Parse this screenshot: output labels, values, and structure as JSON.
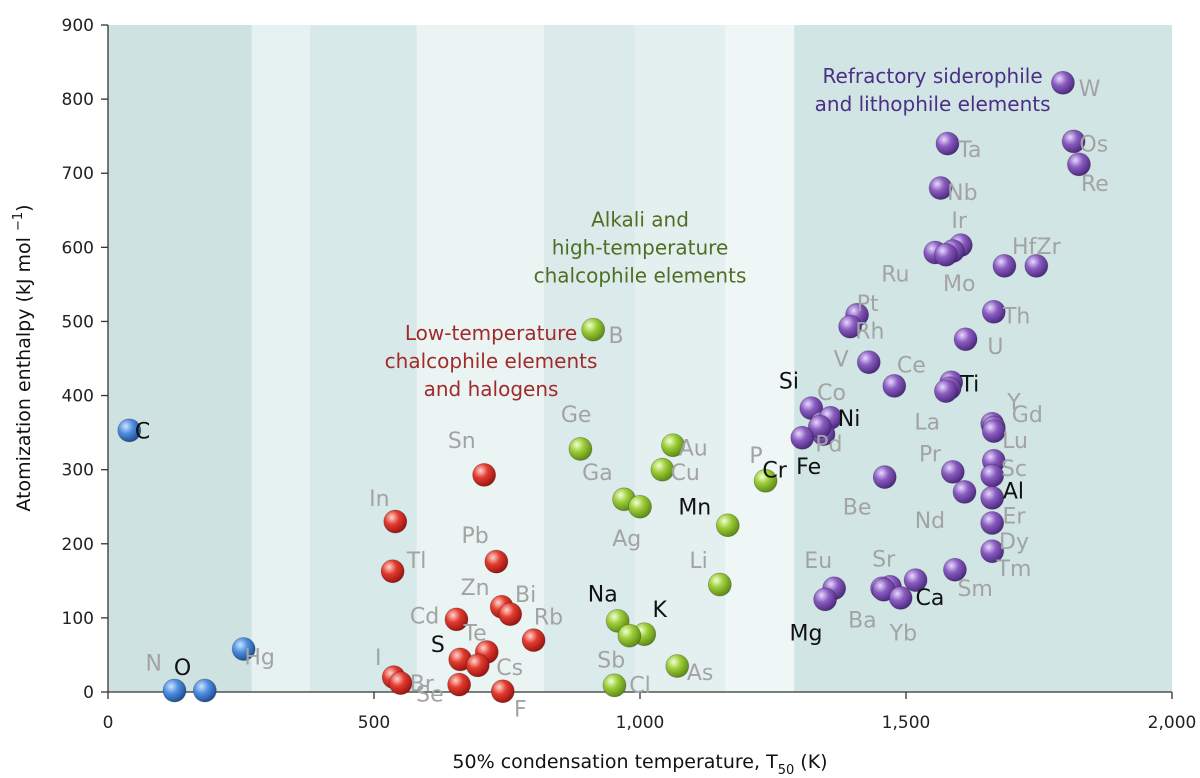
{
  "chart_data": {
    "type": "scatter",
    "xlabel": "50% condensation temperature,",
    "xlabel_symbol": "T",
    "xlabel_sub": "50",
    "xlabel_unit": "(K)",
    "ylabel": "Atomization enthalpy (kJ mol",
    "ylabel_sup": "−1",
    "ylabel_close": ")",
    "xlim": [
      0,
      2000
    ],
    "ylim": [
      0,
      900
    ],
    "x_ticks": [
      0,
      500,
      1000,
      1500,
      2000
    ],
    "x_tick_labels": [
      "0",
      "500",
      "1,000",
      "1,500",
      "2,000"
    ],
    "y_ticks": [
      0,
      100,
      200,
      300,
      400,
      500,
      600,
      700,
      800,
      900
    ],
    "y_tick_labels": [
      "0",
      "100",
      "200",
      "300",
      "400",
      "500",
      "600",
      "700",
      "800",
      "900"
    ],
    "colors": {
      "volatile": "#2f6fc2",
      "low_temp": "#d3231f",
      "alkali": "#8cbe2a",
      "refractory": "#7a4bab",
      "label_gray": "#a3a3a3",
      "label_black": "#111111",
      "ann_low_temp": "#a32a2a",
      "ann_alkali": "#4f6e23",
      "ann_refractory": "#4b2f86"
    },
    "annotations": [
      {
        "group": "low_temp",
        "lines": [
          "Low-temperature",
          "chalcophile elements",
          "and halogens"
        ],
        "x": 720,
        "y": 475
      },
      {
        "group": "alkali",
        "lines": [
          "Alkali and",
          "high-temperature",
          "chalcophile elements"
        ],
        "x": 1000,
        "y": 628
      },
      {
        "group": "refractory",
        "lines": [
          "Refractory siderophile",
          "and lithophile elements"
        ],
        "x": 1550,
        "y": 822
      }
    ],
    "series": [
      {
        "group": "volatile",
        "points": [
          {
            "el": "C",
            "x": 40,
            "y": 353,
            "lx": 65,
            "ly": 353,
            "dark": true
          },
          {
            "el": "N",
            "x": 125,
            "y": 2,
            "lx": 86,
            "ly": 40,
            "dark": false
          },
          {
            "el": "O",
            "x": 182,
            "y": 2,
            "lx": 140,
            "ly": 34,
            "dark": true
          },
          {
            "el": "Hg",
            "x": 255,
            "y": 58,
            "lx": 285,
            "ly": 48,
            "dark": false
          }
        ]
      },
      {
        "group": "low_temp",
        "points": [
          {
            "el": "Sn",
            "x": 707,
            "y": 293,
            "lx": 665,
            "ly": 340,
            "dark": false
          },
          {
            "el": "In",
            "x": 540,
            "y": 230,
            "lx": 510,
            "ly": 262,
            "dark": false
          },
          {
            "el": "Pb",
            "x": 730,
            "y": 176,
            "lx": 690,
            "ly": 212,
            "dark": false
          },
          {
            "el": "Tl",
            "x": 535,
            "y": 163,
            "lx": 580,
            "ly": 178,
            "dark": false
          },
          {
            "el": "Zn",
            "x": 740,
            "y": 115,
            "lx": 690,
            "ly": 142,
            "dark": false
          },
          {
            "el": "Bi",
            "x": 756,
            "y": 105,
            "lx": 785,
            "ly": 132,
            "dark": false
          },
          {
            "el": "Rb",
            "x": 800,
            "y": 70,
            "lx": 828,
            "ly": 102,
            "dark": false
          },
          {
            "el": "Cd",
            "x": 655,
            "y": 98,
            "lx": 595,
            "ly": 103,
            "dark": false
          },
          {
            "el": "Te",
            "x": 712,
            "y": 54,
            "lx": 690,
            "ly": 80,
            "dark": false
          },
          {
            "el": "S",
            "x": 662,
            "y": 44,
            "lx": 620,
            "ly": 65,
            "dark": true
          },
          {
            "el": "Cs",
            "x": 695,
            "y": 36,
            "lx": 755,
            "ly": 34,
            "dark": false
          },
          {
            "el": "I",
            "x": 537,
            "y": 20,
            "lx": 508,
            "ly": 47,
            "dark": false
          },
          {
            "el": "Br",
            "x": 550,
            "y": 12,
            "lx": 590,
            "ly": 12,
            "dark": false
          },
          {
            "el": "Se",
            "x": 660,
            "y": 10,
            "lx": 605,
            "ly": -2,
            "dark": false
          },
          {
            "el": "F",
            "x": 742,
            "y": 1,
            "lx": 775,
            "ly": -22,
            "dark": false
          }
        ]
      },
      {
        "group": "alkali",
        "points": [
          {
            "el": "B",
            "x": 912,
            "y": 489,
            "lx": 955,
            "ly": 482,
            "dark": false
          },
          {
            "el": "Ge",
            "x": 888,
            "y": 328,
            "lx": 880,
            "ly": 375,
            "dark": false
          },
          {
            "el": "Au",
            "x": 1062,
            "y": 333,
            "lx": 1100,
            "ly": 330,
            "dark": false
          },
          {
            "el": "Cu",
            "x": 1042,
            "y": 300,
            "lx": 1085,
            "ly": 297,
            "dark": false
          },
          {
            "el": "Ga",
            "x": 970,
            "y": 260,
            "lx": 920,
            "ly": 297,
            "dark": false
          },
          {
            "el": "Ag",
            "x": 1000,
            "y": 250,
            "lx": 975,
            "ly": 208,
            "dark": false
          },
          {
            "el": "P",
            "x": 1236,
            "y": 285,
            "lx": 1218,
            "ly": 320,
            "dark": false
          },
          {
            "el": "Mn",
            "x": 1165,
            "y": 225,
            "lx": 1103,
            "ly": 250,
            "dark": true
          },
          {
            "el": "Li",
            "x": 1150,
            "y": 145,
            "lx": 1110,
            "ly": 178,
            "dark": false
          },
          {
            "el": "Na",
            "x": 958,
            "y": 96,
            "lx": 930,
            "ly": 133,
            "dark": true
          },
          {
            "el": "K",
            "x": 1008,
            "y": 78,
            "lx": 1037,
            "ly": 112,
            "dark": true
          },
          {
            "el": "Sb",
            "x": 980,
            "y": 76,
            "lx": 946,
            "ly": 44,
            "dark": false
          },
          {
            "el": "As",
            "x": 1070,
            "y": 35,
            "lx": 1113,
            "ly": 27,
            "dark": false
          },
          {
            "el": "Cl",
            "x": 952,
            "y": 9,
            "lx": 1000,
            "ly": 10,
            "dark": false
          }
        ]
      },
      {
        "group": "refractory",
        "points": [
          {
            "el": "W",
            "x": 1795,
            "y": 822,
            "lx": 1845,
            "ly": 815,
            "dark": false
          },
          {
            "el": "Ta",
            "x": 1578,
            "y": 740,
            "lx": 1620,
            "ly": 733,
            "dark": false
          },
          {
            "el": "Os",
            "x": 1815,
            "y": 743,
            "lx": 1853,
            "ly": 740,
            "dark": false
          },
          {
            "el": "Re",
            "x": 1825,
            "y": 712,
            "lx": 1855,
            "ly": 687,
            "dark": false
          },
          {
            "el": "Nb",
            "x": 1565,
            "y": 680,
            "lx": 1606,
            "ly": 675,
            "dark": false
          },
          {
            "el": "Ir",
            "x": 1603,
            "y": 603,
            "lx": 1600,
            "ly": 637,
            "dark": false
          },
          {
            "el": "Os2",
            "x": 1588,
            "y": 595,
            "lx": 0,
            "ly": 0,
            "dark": false,
            "nolabel": true
          },
          {
            "el": "Ru",
            "x": 1555,
            "y": 593,
            "lx": 1480,
            "ly": 565,
            "dark": false
          },
          {
            "el": "Mo",
            "x": 1575,
            "y": 590,
            "lx": 1600,
            "ly": 552,
            "dark": false
          },
          {
            "el": "Hf",
            "x": 1685,
            "y": 575,
            "lx": 1722,
            "ly": 602,
            "dark": false
          },
          {
            "el": "Zr",
            "x": 1745,
            "y": 575,
            "lx": 1768,
            "ly": 602,
            "dark": false
          },
          {
            "el": "Pt",
            "x": 1408,
            "y": 509,
            "lx": 1428,
            "ly": 525,
            "dark": false
          },
          {
            "el": "Rh",
            "x": 1395,
            "y": 493,
            "lx": 1432,
            "ly": 488,
            "dark": false
          },
          {
            "el": "Th",
            "x": 1665,
            "y": 513,
            "lx": 1708,
            "ly": 508,
            "dark": false
          },
          {
            "el": "U",
            "x": 1612,
            "y": 476,
            "lx": 1668,
            "ly": 467,
            "dark": false
          },
          {
            "el": "V",
            "x": 1430,
            "y": 445,
            "lx": 1378,
            "ly": 450,
            "dark": false
          },
          {
            "el": "Ce",
            "x": 1478,
            "y": 413,
            "lx": 1510,
            "ly": 442,
            "dark": false
          },
          {
            "el": "Ti",
            "x": 1585,
            "y": 418,
            "lx": 1620,
            "ly": 416,
            "dark": true
          },
          {
            "el": "Ti2",
            "x": 1582,
            "y": 410,
            "lx": 0,
            "ly": 0,
            "dark": false,
            "nolabel": true
          },
          {
            "el": "La",
            "x": 1575,
            "y": 406,
            "lx": 1540,
            "ly": 365,
            "dark": false
          },
          {
            "el": "Si",
            "x": 1322,
            "y": 383,
            "lx": 1280,
            "ly": 420,
            "dark": true
          },
          {
            "el": "Co",
            "x": 1342,
            "y": 363,
            "lx": 1360,
            "ly": 405,
            "dark": false
          },
          {
            "el": "Ni",
            "x": 1358,
            "y": 370,
            "lx": 1393,
            "ly": 370,
            "dark": true
          },
          {
            "el": "Pd",
            "x": 1345,
            "y": 348,
            "lx": 1355,
            "ly": 335,
            "dark": false
          },
          {
            "el": "Fe",
            "x": 1338,
            "y": 358,
            "lx": 1317,
            "ly": 305,
            "dark": true
          },
          {
            "el": "Cr",
            "x": 1305,
            "y": 343,
            "lx": 1253,
            "ly": 300,
            "dark": true
          },
          {
            "el": "Y",
            "x": 1662,
            "y": 362,
            "lx": 1703,
            "ly": 392,
            "dark": false
          },
          {
            "el": "Gd",
            "x": 1665,
            "y": 357,
            "lx": 1728,
            "ly": 375,
            "dark": false
          },
          {
            "el": "Lu",
            "x": 1665,
            "y": 352,
            "lx": 1705,
            "ly": 340,
            "dark": false
          },
          {
            "el": "Pr",
            "x": 1588,
            "y": 297,
            "lx": 1545,
            "ly": 322,
            "dark": false
          },
          {
            "el": "Sc",
            "x": 1665,
            "y": 312,
            "lx": 1703,
            "ly": 302,
            "dark": false
          },
          {
            "el": "Al",
            "x": 1662,
            "y": 292,
            "lx": 1702,
            "ly": 272,
            "dark": true
          },
          {
            "el": "Be",
            "x": 1460,
            "y": 290,
            "lx": 1408,
            "ly": 250,
            "dark": false
          },
          {
            "el": "Nd",
            "x": 1610,
            "y": 270,
            "lx": 1545,
            "ly": 232,
            "dark": false
          },
          {
            "el": "Er",
            "x": 1662,
            "y": 262,
            "lx": 1703,
            "ly": 238,
            "dark": false
          },
          {
            "el": "Dy",
            "x": 1662,
            "y": 228,
            "lx": 1703,
            "ly": 204,
            "dark": false
          },
          {
            "el": "Tm",
            "x": 1662,
            "y": 190,
            "lx": 1703,
            "ly": 167,
            "dark": false
          },
          {
            "el": "Eu",
            "x": 1365,
            "y": 140,
            "lx": 1335,
            "ly": 178,
            "dark": false
          },
          {
            "el": "Mg",
            "x": 1348,
            "y": 125,
            "lx": 1312,
            "ly": 80,
            "dark": true
          },
          {
            "el": "Sr",
            "x": 1470,
            "y": 142,
            "lx": 1458,
            "ly": 180,
            "dark": false
          },
          {
            "el": "Sr2",
            "x": 1455,
            "y": 140,
            "lx": 0,
            "ly": 0,
            "dark": false,
            "nolabel": true
          },
          {
            "el": "Ba",
            "x": 1458,
            "y": 138,
            "lx": 1418,
            "ly": 98,
            "dark": false
          },
          {
            "el": "Ca",
            "x": 1518,
            "y": 151,
            "lx": 1545,
            "ly": 128,
            "dark": true
          },
          {
            "el": "Yb",
            "x": 1490,
            "y": 127,
            "lx": 1495,
            "ly": 80,
            "dark": false
          },
          {
            "el": "Sm",
            "x": 1592,
            "y": 165,
            "lx": 1630,
            "ly": 140,
            "dark": false
          }
        ]
      }
    ]
  }
}
